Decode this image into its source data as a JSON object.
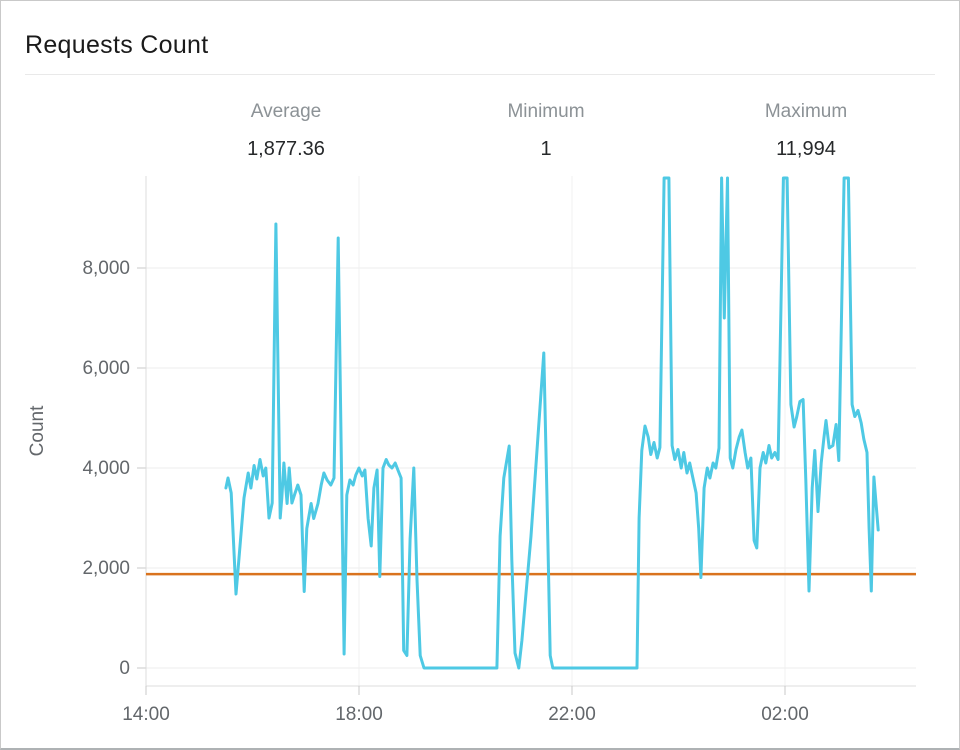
{
  "header": {
    "title": "Requests Count"
  },
  "stats": {
    "average": {
      "label": "Average",
      "value": "1,877.36"
    },
    "minimum": {
      "label": "Minimum",
      "value": "1"
    },
    "maximum": {
      "label": "Maximum",
      "value": "11,994"
    }
  },
  "chart_data": {
    "type": "line",
    "title": "Requests Count",
    "ylabel": "Count",
    "legend": "none",
    "grid": true,
    "x_axis": {
      "unit": "hours after first tick (14:00)",
      "range_hours": [
        0,
        14.46
      ],
      "ticks": [
        {
          "t": 0,
          "label": "14:00"
        },
        {
          "t": 4,
          "label": "18:00"
        },
        {
          "t": 8,
          "label": "22:00"
        },
        {
          "t": 12,
          "label": "02:00"
        }
      ]
    },
    "y_axis": {
      "range": [
        0,
        9840
      ],
      "clip_note": "values above ~9,840 render clipped at the plot top; stats show true max 11,994",
      "ticks": [
        {
          "v": 0,
          "label": "0"
        },
        {
          "v": 2000,
          "label": "2,000"
        },
        {
          "v": 4000,
          "label": "4,000"
        },
        {
          "v": 6000,
          "label": "6,000"
        },
        {
          "v": 8000,
          "label": "8,000"
        }
      ]
    },
    "average_line": {
      "value": 1877.36,
      "color": "#d9731e"
    },
    "series": [
      {
        "name": "Requests Count",
        "color": "#4ec9e4",
        "points_t_hours_value": [
          [
            1.5,
            3600
          ],
          [
            1.54,
            3800
          ],
          [
            1.6,
            3500
          ],
          [
            1.69,
            1480
          ],
          [
            1.84,
            3400
          ],
          [
            1.92,
            3900
          ],
          [
            1.97,
            3600
          ],
          [
            2.03,
            4050
          ],
          [
            2.08,
            3780
          ],
          [
            2.14,
            4170
          ],
          [
            2.2,
            3840
          ],
          [
            2.25,
            4000
          ],
          [
            2.31,
            3000
          ],
          [
            2.37,
            3300
          ],
          [
            2.44,
            8880
          ],
          [
            2.52,
            3000
          ],
          [
            2.55,
            3400
          ],
          [
            2.59,
            4100
          ],
          [
            2.65,
            3290
          ],
          [
            2.69,
            4000
          ],
          [
            2.74,
            3300
          ],
          [
            2.8,
            3500
          ],
          [
            2.85,
            3660
          ],
          [
            2.91,
            3460
          ],
          [
            2.97,
            1530
          ],
          [
            3.02,
            2790
          ],
          [
            3.1,
            3290
          ],
          [
            3.15,
            2990
          ],
          [
            3.23,
            3290
          ],
          [
            3.29,
            3660
          ],
          [
            3.34,
            3900
          ],
          [
            3.4,
            3760
          ],
          [
            3.47,
            3660
          ],
          [
            3.53,
            3800
          ],
          [
            3.61,
            8600
          ],
          [
            3.72,
            280
          ],
          [
            3.77,
            3460
          ],
          [
            3.83,
            3760
          ],
          [
            3.89,
            3660
          ],
          [
            3.94,
            3860
          ],
          [
            4.0,
            4000
          ],
          [
            4.06,
            3840
          ],
          [
            4.11,
            3960
          ],
          [
            4.17,
            2990
          ],
          [
            4.23,
            2440
          ],
          [
            4.28,
            3600
          ],
          [
            4.34,
            3960
          ],
          [
            4.39,
            1830
          ],
          [
            4.45,
            4000
          ],
          [
            4.51,
            4170
          ],
          [
            4.56,
            4060
          ],
          [
            4.62,
            4000
          ],
          [
            4.68,
            4100
          ],
          [
            4.73,
            3960
          ],
          [
            4.79,
            3800
          ],
          [
            4.84,
            350
          ],
          [
            4.9,
            250
          ],
          [
            4.96,
            2580
          ],
          [
            5.03,
            4000
          ],
          [
            5.09,
            1770
          ],
          [
            5.15,
            250
          ],
          [
            5.22,
            1
          ],
          [
            5.4,
            1
          ],
          [
            5.6,
            1
          ],
          [
            5.8,
            1
          ],
          [
            6.0,
            1
          ],
          [
            6.2,
            1
          ],
          [
            6.4,
            1
          ],
          [
            6.59,
            1
          ],
          [
            6.65,
            2640
          ],
          [
            6.72,
            3800
          ],
          [
            6.82,
            4440
          ],
          [
            6.87,
            2170
          ],
          [
            6.93,
            300
          ],
          [
            7.0,
            1
          ],
          [
            7.06,
            550
          ],
          [
            7.23,
            2640
          ],
          [
            7.47,
            6300
          ],
          [
            7.53,
            3400
          ],
          [
            7.59,
            250
          ],
          [
            7.64,
            1
          ],
          [
            7.9,
            1
          ],
          [
            8.2,
            1
          ],
          [
            8.5,
            1
          ],
          [
            8.8,
            1
          ],
          [
            9.0,
            1
          ],
          [
            9.22,
            1
          ],
          [
            9.26,
            3000
          ],
          [
            9.31,
            4350
          ],
          [
            9.37,
            4840
          ],
          [
            9.43,
            4620
          ],
          [
            9.48,
            4270
          ],
          [
            9.54,
            4510
          ],
          [
            9.6,
            4200
          ],
          [
            9.65,
            4410
          ],
          [
            9.73,
            11994
          ],
          [
            9.82,
            11994
          ],
          [
            9.88,
            4450
          ],
          [
            9.93,
            4170
          ],
          [
            9.99,
            4370
          ],
          [
            10.05,
            4000
          ],
          [
            10.1,
            4310
          ],
          [
            10.16,
            3900
          ],
          [
            10.21,
            4100
          ],
          [
            10.27,
            3800
          ],
          [
            10.33,
            3500
          ],
          [
            10.38,
            2790
          ],
          [
            10.42,
            1810
          ],
          [
            10.48,
            3600
          ],
          [
            10.54,
            4000
          ],
          [
            10.59,
            3800
          ],
          [
            10.65,
            4100
          ],
          [
            10.7,
            4000
          ],
          [
            10.76,
            4400
          ],
          [
            10.81,
            11994
          ],
          [
            10.86,
            7000
          ],
          [
            10.92,
            11994
          ],
          [
            10.97,
            4200
          ],
          [
            11.02,
            4000
          ],
          [
            11.08,
            4370
          ],
          [
            11.14,
            4620
          ],
          [
            11.19,
            4760
          ],
          [
            11.25,
            4310
          ],
          [
            11.3,
            4000
          ],
          [
            11.36,
            4200
          ],
          [
            11.42,
            2550
          ],
          [
            11.47,
            2400
          ],
          [
            11.53,
            4000
          ],
          [
            11.59,
            4310
          ],
          [
            11.64,
            4100
          ],
          [
            11.7,
            4450
          ],
          [
            11.75,
            4200
          ],
          [
            11.81,
            4310
          ],
          [
            11.87,
            4170
          ],
          [
            11.97,
            11994
          ],
          [
            12.04,
            11994
          ],
          [
            12.11,
            5270
          ],
          [
            12.17,
            4820
          ],
          [
            12.22,
            5020
          ],
          [
            12.28,
            5330
          ],
          [
            12.34,
            5370
          ],
          [
            12.39,
            3770
          ],
          [
            12.45,
            1540
          ],
          [
            12.51,
            3600
          ],
          [
            12.56,
            4350
          ],
          [
            12.62,
            3130
          ],
          [
            12.68,
            4100
          ],
          [
            12.73,
            4600
          ],
          [
            12.77,
            4950
          ],
          [
            12.83,
            4400
          ],
          [
            12.9,
            4450
          ],
          [
            12.96,
            4870
          ],
          [
            13.01,
            4150
          ],
          [
            13.11,
            11994
          ],
          [
            13.19,
            11994
          ],
          [
            13.26,
            5270
          ],
          [
            13.31,
            5030
          ],
          [
            13.37,
            5150
          ],
          [
            13.43,
            4900
          ],
          [
            13.48,
            4580
          ],
          [
            13.54,
            4310
          ],
          [
            13.58,
            2790
          ],
          [
            13.62,
            1540
          ],
          [
            13.67,
            3820
          ],
          [
            13.75,
            2760
          ]
        ]
      }
    ],
    "colors": {
      "series": "#4ec9e4",
      "average_line": "#d9731e",
      "gridline": "#ededed",
      "axis_line": "#dcdcdc",
      "tick": "#c9c9c9",
      "axis_text": "#63676b"
    }
  }
}
